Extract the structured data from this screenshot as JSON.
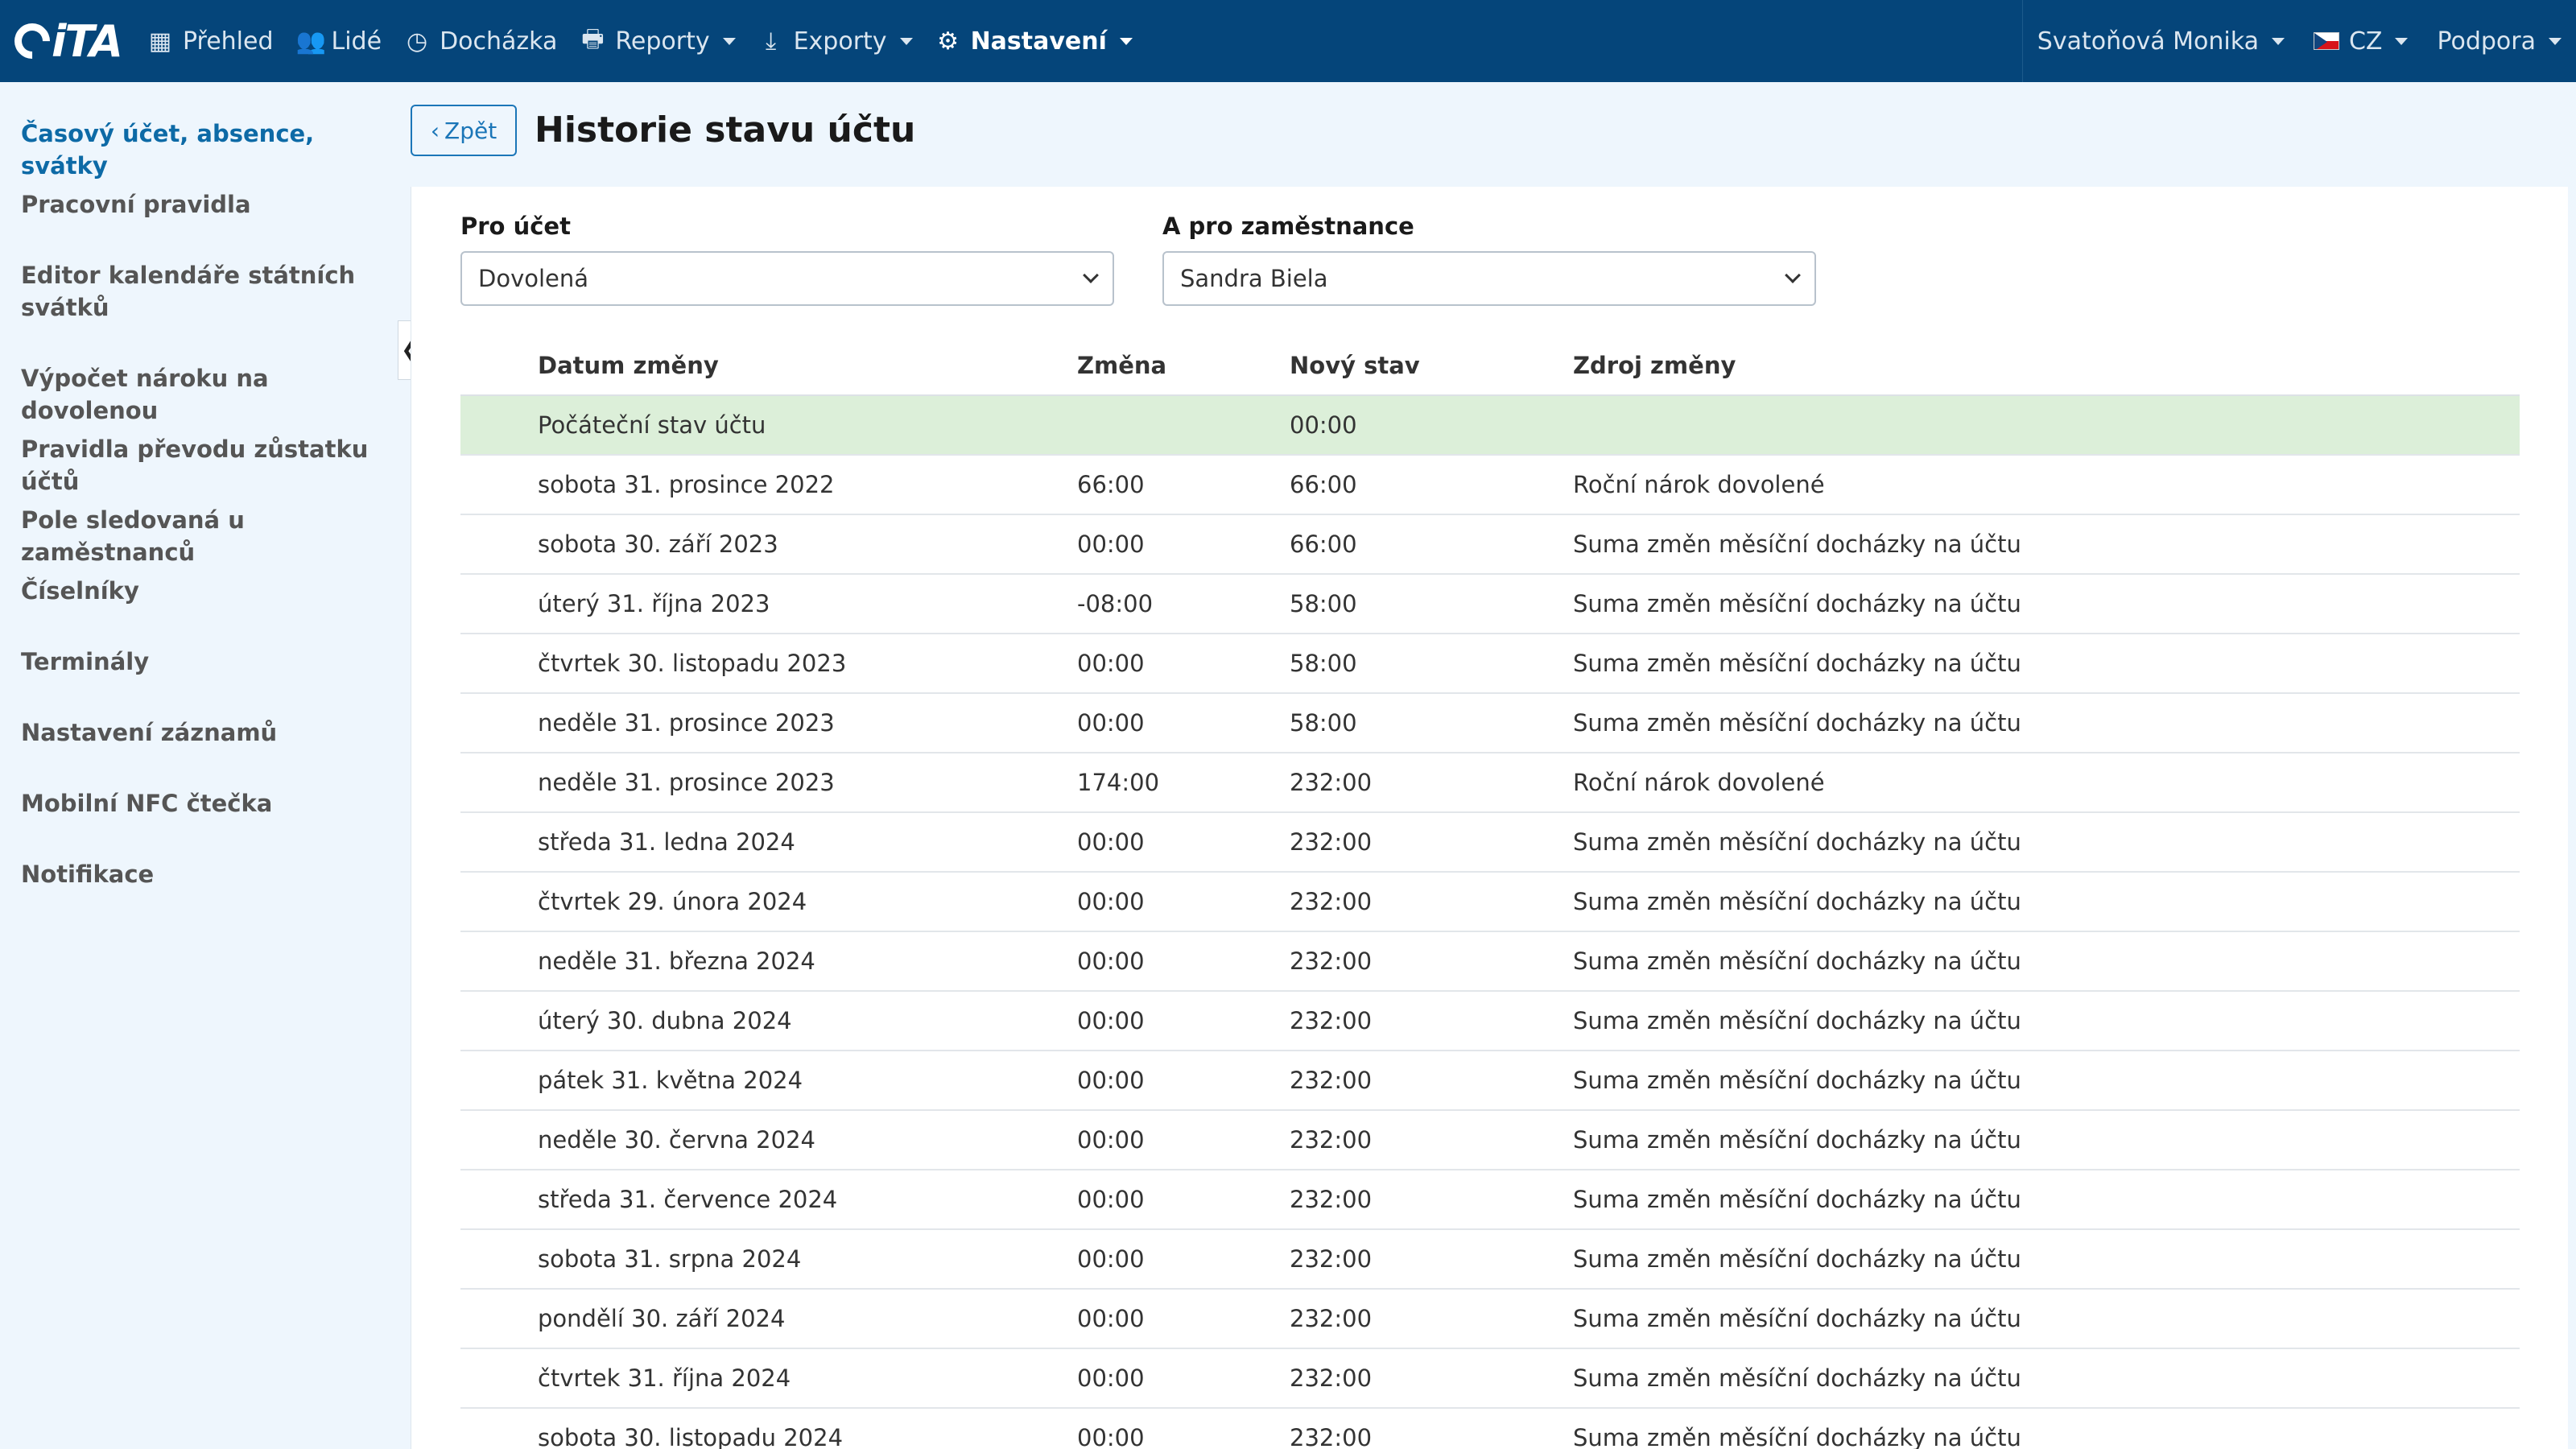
{
  "app": {
    "logo_text": "iTA"
  },
  "nav": {
    "items": [
      {
        "label": "Přehled",
        "icon": "grid-icon"
      },
      {
        "label": "Lidé",
        "icon": "users-icon"
      },
      {
        "label": "Docházka",
        "icon": "clock-icon"
      },
      {
        "label": "Reporty",
        "icon": "printer-icon"
      },
      {
        "label": "Exporty",
        "icon": "export-icon"
      },
      {
        "label": "Nastavení",
        "icon": "gear-icon"
      }
    ],
    "user": "Svatoňová Monika",
    "language": "CZ",
    "support": "Podpora"
  },
  "sidebar": {
    "items": [
      {
        "label": "Časový účet, absence, svátky",
        "active": true
      },
      {
        "label": "Pracovní pravidla"
      },
      {
        "label": "Editor kalendáře státních svátků"
      },
      {
        "label": "Výpočet nároku na dovolenou"
      },
      {
        "label": "Pravidla převodu zůstatku účtů"
      },
      {
        "label": "Pole sledovaná u zaměstnanců"
      },
      {
        "label": "Číselníky"
      },
      {
        "label": "Terminály"
      },
      {
        "label": "Nastavení záznamů"
      },
      {
        "label": "Mobilní NFC čtečka"
      },
      {
        "label": "Notifikace"
      }
    ]
  },
  "header": {
    "back_label": "Zpět",
    "title": "Historie stavu účtu"
  },
  "filters": {
    "account_label": "Pro účet",
    "account_value": "Dovolená",
    "employee_label": "A pro zaměstnance",
    "employee_value": "Sandra Biela"
  },
  "table": {
    "columns": [
      "Datum změny",
      "Změna",
      "Nový stav",
      "Zdroj změny"
    ],
    "rows": [
      {
        "date": "Počáteční stav účtu",
        "change": "",
        "state": "00:00",
        "source": ""
      },
      {
        "date": "sobota 31. prosince 2022",
        "change": "66:00",
        "state": "66:00",
        "source": "Roční nárok dovolené"
      },
      {
        "date": "sobota 30. září 2023",
        "change": "00:00",
        "state": "66:00",
        "source": "Suma změn měsíční docházky na účtu"
      },
      {
        "date": "úterý 31. října 2023",
        "change": "-08:00",
        "state": "58:00",
        "source": "Suma změn měsíční docházky na účtu"
      },
      {
        "date": "čtvrtek 30. listopadu 2023",
        "change": "00:00",
        "state": "58:00",
        "source": "Suma změn měsíční docházky na účtu"
      },
      {
        "date": "neděle 31. prosince 2023",
        "change": "00:00",
        "state": "58:00",
        "source": "Suma změn měsíční docházky na účtu"
      },
      {
        "date": "neděle 31. prosince 2023",
        "change": "174:00",
        "state": "232:00",
        "source": "Roční nárok dovolené"
      },
      {
        "date": "středa 31. ledna 2024",
        "change": "00:00",
        "state": "232:00",
        "source": "Suma změn měsíční docházky na účtu"
      },
      {
        "date": "čtvrtek 29. února 2024",
        "change": "00:00",
        "state": "232:00",
        "source": "Suma změn měsíční docházky na účtu"
      },
      {
        "date": "neděle 31. března 2024",
        "change": "00:00",
        "state": "232:00",
        "source": "Suma změn měsíční docházky na účtu"
      },
      {
        "date": "úterý 30. dubna 2024",
        "change": "00:00",
        "state": "232:00",
        "source": "Suma změn měsíční docházky na účtu"
      },
      {
        "date": "pátek 31. května 2024",
        "change": "00:00",
        "state": "232:00",
        "source": "Suma změn měsíční docházky na účtu"
      },
      {
        "date": "neděle 30. června 2024",
        "change": "00:00",
        "state": "232:00",
        "source": "Suma změn měsíční docházky na účtu"
      },
      {
        "date": "středa 31. července 2024",
        "change": "00:00",
        "state": "232:00",
        "source": "Suma změn měsíční docházky na účtu"
      },
      {
        "date": "sobota 31. srpna 2024",
        "change": "00:00",
        "state": "232:00",
        "source": "Suma změn měsíční docházky na účtu"
      },
      {
        "date": "pondělí 30. září 2024",
        "change": "00:00",
        "state": "232:00",
        "source": "Suma změn měsíční docházky na účtu"
      },
      {
        "date": "čtvrtek 31. října 2024",
        "change": "00:00",
        "state": "232:00",
        "source": "Suma změn měsíční docházky na účtu"
      },
      {
        "date": "sobota 30. listopadu 2024",
        "change": "00:00",
        "state": "232:00",
        "source": "Suma změn měsíční docházky na účtu"
      }
    ]
  },
  "colors": {
    "nav_bg": "#05457a",
    "accent": "#1b76b8",
    "initial_row_bg": "#dcefd9"
  }
}
